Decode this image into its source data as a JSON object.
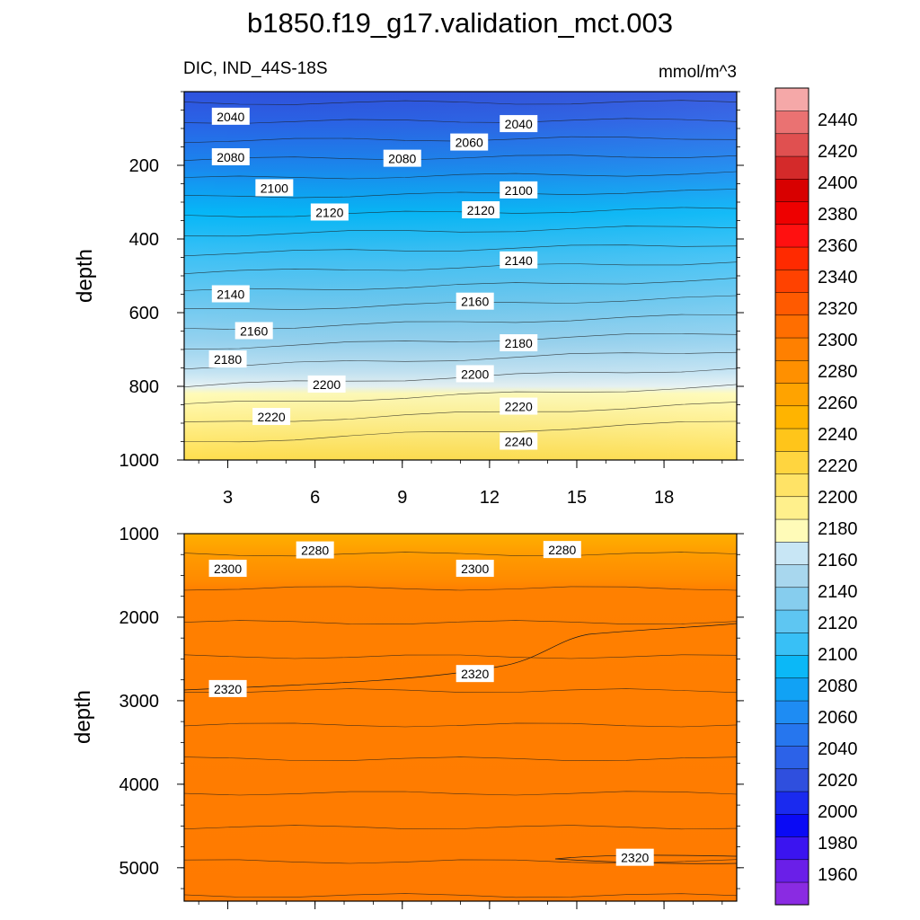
{
  "chart_data": {
    "type": "contour",
    "title": "b1850.f19_g17.validation_mct.003",
    "subtitle_left": "DIC, IND_44S-18S",
    "units": "mmol/m^3",
    "x": {
      "ticks": [
        3,
        6,
        9,
        12,
        15,
        18
      ],
      "range": [
        1.5,
        20.5
      ]
    },
    "colorbar": {
      "levels": [
        1960,
        1980,
        2000,
        2020,
        2040,
        2060,
        2080,
        2100,
        2120,
        2140,
        2160,
        2180,
        2200,
        2220,
        2240,
        2260,
        2280,
        2300,
        2320,
        2340,
        2360,
        2380,
        2400,
        2420,
        2440
      ],
      "colors": [
        "#8a2be2",
        "#6a1fe8",
        "#3b14f0",
        "#0a0af5",
        "#1a2aef",
        "#2f4fde",
        "#2c62e8",
        "#2676ee",
        "#1e8cf3",
        "#11a2f5",
        "#0bb8f7",
        "#38c0f6",
        "#5ec6f2",
        "#86cdee",
        "#a8d7ee",
        "#c8e6f5",
        "#fffbb8",
        "#fff08c",
        "#ffe366",
        "#ffd53f",
        "#ffc51a",
        "#ffb400",
        "#ffa300",
        "#ff9000",
        "#ff8000",
        "#ff6e00",
        "#ff5a00",
        "#ff4200",
        "#ff2a00",
        "#ff1010",
        "#ee0000",
        "#d80000",
        "#d42a2a",
        "#e05050",
        "#ea7272",
        "#f5a8a8"
      ]
    },
    "panels": [
      {
        "id": "upper",
        "ylabel": "depth",
        "yticks": [
          200,
          400,
          600,
          800,
          1000
        ],
        "ylim": [
          0,
          1000
        ],
        "contour_labels": [
          {
            "text": "2040",
            "x": 3.1,
            "y": 68
          },
          {
            "text": "2040",
            "x": 13.0,
            "y": 88
          },
          {
            "text": "2060",
            "x": 11.3,
            "y": 138
          },
          {
            "text": "2080",
            "x": 3.1,
            "y": 178
          },
          {
            "text": "2080",
            "x": 9.0,
            "y": 182
          },
          {
            "text": "2100",
            "x": 4.6,
            "y": 262
          },
          {
            "text": "2100",
            "x": 13.0,
            "y": 268
          },
          {
            "text": "2120",
            "x": 6.5,
            "y": 328
          },
          {
            "text": "2120",
            "x": 11.7,
            "y": 322
          },
          {
            "text": "2140",
            "x": 13.0,
            "y": 458
          },
          {
            "text": "2140",
            "x": 3.1,
            "y": 550
          },
          {
            "text": "2160",
            "x": 11.5,
            "y": 570
          },
          {
            "text": "2160",
            "x": 3.9,
            "y": 650
          },
          {
            "text": "2180",
            "x": 13.0,
            "y": 683
          },
          {
            "text": "2180",
            "x": 3.0,
            "y": 727
          },
          {
            "text": "2200",
            "x": 11.5,
            "y": 767
          },
          {
            "text": "2200",
            "x": 6.4,
            "y": 795
          },
          {
            "text": "2220",
            "x": 13.0,
            "y": 855
          },
          {
            "text": "2220",
            "x": 4.5,
            "y": 883
          },
          {
            "text": "2240",
            "x": 13.0,
            "y": 950
          }
        ]
      },
      {
        "id": "lower",
        "ylabel": "depth",
        "yticks": [
          1000,
          2000,
          3000,
          4000,
          5000
        ],
        "ylim": [
          1000,
          5400
        ],
        "contour_labels": [
          {
            "text": "2280",
            "x": 6.0,
            "y": 1200
          },
          {
            "text": "2280",
            "x": 14.5,
            "y": 1195
          },
          {
            "text": "2300",
            "x": 3.0,
            "y": 1420
          },
          {
            "text": "2300",
            "x": 11.5,
            "y": 1420
          },
          {
            "text": "2320",
            "x": 3.0,
            "y": 2860
          },
          {
            "text": "2320",
            "x": 11.5,
            "y": 2680
          },
          {
            "text": "2320",
            "x": 17.0,
            "y": 4880
          }
        ]
      }
    ]
  }
}
